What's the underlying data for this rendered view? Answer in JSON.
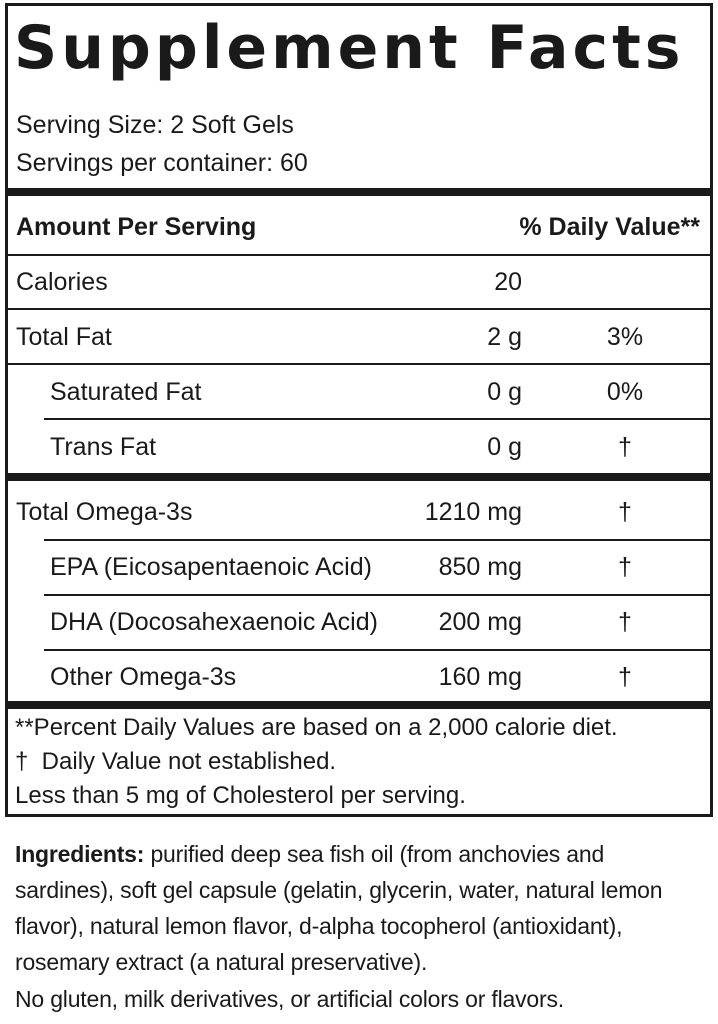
{
  "title": "Supplement Facts",
  "serving_size": "Serving Size: 2 Soft Gels",
  "servings_per_container": "Servings per container: 60",
  "table": {
    "header": [
      "Amount Per Serving",
      "% Daily Value**"
    ],
    "rows": [
      [
        "Calories",
        "20"
      ],
      [
        "Total Fat",
        "2 g",
        "3%"
      ],
      [
        "Saturated Fat",
        "0 g",
        "0%"
      ],
      [
        "Trans Fat",
        "0 g",
        "†"
      ],
      [
        "Total Omega-3s",
        "1210 mg",
        "†"
      ],
      [
        "EPA (Eicosapentaenoic Acid)",
        "850 mg",
        "†"
      ],
      [
        "DHA (Docosahexaenoic Acid)",
        "200 mg",
        "†"
      ],
      [
        "Other Omega-3s",
        "160 mg",
        "†"
      ]
    ]
  },
  "footnotes": [
    "**Percent Daily Values are based on a 2,000 calorie diet.",
    "†  Daily Value not established.",
    "Less than 5 mg of Cholesterol per serving."
  ],
  "ingredients": {
    "label": "Ingredients:",
    "text": "purified deep sea fish oil (from anchovies and sardines), soft gel capsule (gelatin, glycerin, water, natural lemon flavor), natural lemon flavor, d-alpha tocopherol (antioxidant), rosemary extract (a natural preservative)."
  },
  "note": "No gluten, milk derivatives, or artificial colors or flavors."
}
